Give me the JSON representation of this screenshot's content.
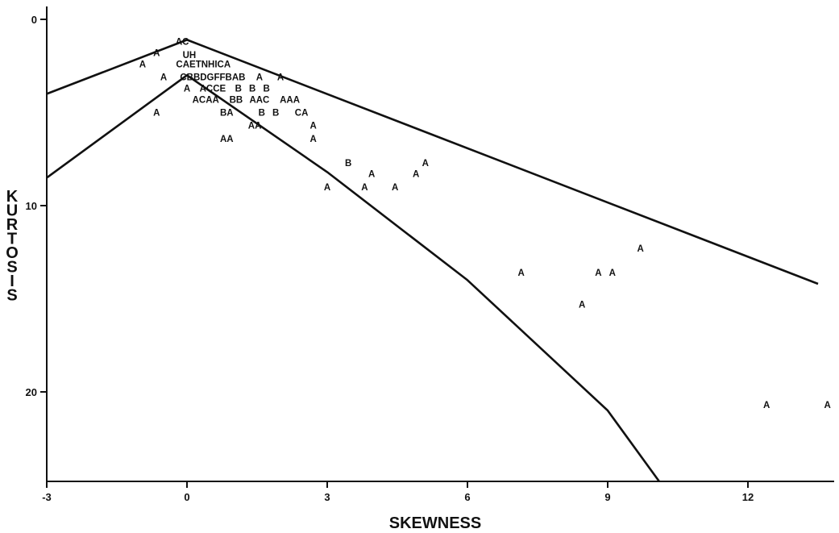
{
  "chart_data": {
    "type": "scatter",
    "title": "",
    "xlabel": "SKEWNESS",
    "ylabel": "KURTOSIS",
    "xlim": [
      -3,
      13.8
    ],
    "ylim": [
      25,
      -0.5
    ],
    "y_inverted": true,
    "grid": false,
    "x_ticks": [
      {
        "value": -3,
        "label": "-3"
      },
      {
        "value": 0,
        "label": "0"
      },
      {
        "value": 3,
        "label": "3"
      },
      {
        "value": 6,
        "label": "6"
      },
      {
        "value": 9,
        "label": "9"
      },
      {
        "value": 12,
        "label": "12"
      }
    ],
    "y_ticks": [
      {
        "value": 0,
        "label": "0"
      },
      {
        "value": 10,
        "label": "10"
      },
      {
        "value": 20,
        "label": "20"
      }
    ],
    "boundary_lines": [
      {
        "points": [
          [
            -3,
            4.0
          ],
          [
            0,
            1.1
          ],
          [
            13.5,
            14.2
          ]
        ]
      },
      {
        "points": [
          [
            -3,
            8.5
          ],
          [
            0,
            3.0
          ],
          [
            3,
            8.2
          ],
          [
            6,
            14.0
          ],
          [
            9,
            21.0
          ],
          [
            10.1,
            24.8
          ]
        ]
      }
    ],
    "points": [
      {
        "x": -0.1,
        "y": 1.2,
        "text": "AC"
      },
      {
        "x": -0.65,
        "y": 1.8,
        "text": "A"
      },
      {
        "x": 0.05,
        "y": 1.9,
        "text": "UH"
      },
      {
        "x": -0.95,
        "y": 2.4,
        "text": "A"
      },
      {
        "x": 0.35,
        "y": 2.4,
        "text": "CAETNHICA"
      },
      {
        "x": -0.5,
        "y": 3.1,
        "text": "A"
      },
      {
        "x": 0.55,
        "y": 3.1,
        "text": "CBBDGFFBAB"
      },
      {
        "x": 1.55,
        "y": 3.1,
        "text": "A"
      },
      {
        "x": 2.0,
        "y": 3.1,
        "text": "A"
      },
      {
        "x": 0.0,
        "y": 3.7,
        "text": "A"
      },
      {
        "x": 0.55,
        "y": 3.7,
        "text": "ACCE"
      },
      {
        "x": 1.1,
        "y": 3.7,
        "text": "B"
      },
      {
        "x": 1.4,
        "y": 3.7,
        "text": "B"
      },
      {
        "x": 1.7,
        "y": 3.7,
        "text": "B"
      },
      {
        "x": 0.4,
        "y": 4.3,
        "text": "ACAA"
      },
      {
        "x": 1.05,
        "y": 4.3,
        "text": "BB"
      },
      {
        "x": 1.55,
        "y": 4.3,
        "text": "AAC"
      },
      {
        "x": 2.2,
        "y": 4.3,
        "text": "AAA"
      },
      {
        "x": -0.65,
        "y": 5.0,
        "text": "A"
      },
      {
        "x": 0.85,
        "y": 5.0,
        "text": "BA"
      },
      {
        "x": 1.6,
        "y": 5.0,
        "text": "B"
      },
      {
        "x": 1.9,
        "y": 5.0,
        "text": "B"
      },
      {
        "x": 2.45,
        "y": 5.0,
        "text": "CA"
      },
      {
        "x": 1.45,
        "y": 5.7,
        "text": "AA"
      },
      {
        "x": 2.7,
        "y": 5.7,
        "text": "A"
      },
      {
        "x": 0.85,
        "y": 6.4,
        "text": "AA"
      },
      {
        "x": 2.7,
        "y": 6.4,
        "text": "A"
      },
      {
        "x": 3.45,
        "y": 7.7,
        "text": "B"
      },
      {
        "x": 5.1,
        "y": 7.7,
        "text": "A"
      },
      {
        "x": 3.95,
        "y": 8.3,
        "text": "A"
      },
      {
        "x": 4.9,
        "y": 8.3,
        "text": "A"
      },
      {
        "x": 3.0,
        "y": 9.0,
        "text": "A"
      },
      {
        "x": 3.8,
        "y": 9.0,
        "text": "A"
      },
      {
        "x": 4.45,
        "y": 9.0,
        "text": "A"
      },
      {
        "x": 9.7,
        "y": 12.3,
        "text": "A"
      },
      {
        "x": 7.15,
        "y": 13.6,
        "text": "A"
      },
      {
        "x": 8.8,
        "y": 13.6,
        "text": "A"
      },
      {
        "x": 9.1,
        "y": 13.6,
        "text": "A"
      },
      {
        "x": 8.45,
        "y": 15.3,
        "text": "A"
      },
      {
        "x": 12.4,
        "y": 20.7,
        "text": "A"
      },
      {
        "x": 13.7,
        "y": 20.7,
        "text": "A"
      }
    ]
  }
}
